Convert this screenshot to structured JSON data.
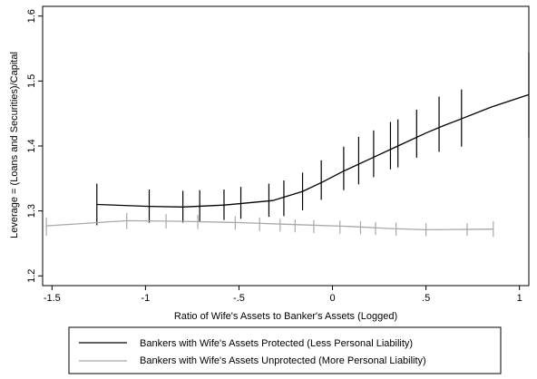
{
  "chart_data": {
    "type": "line",
    "xlabel": "Ratio of Wife's Assets to Banker's Assets (Logged)",
    "ylabel": "Leverage = (Loans and Securities)/Capital",
    "xlim": [
      -1.55,
      1.05
    ],
    "ylim": [
      1.185,
      1.615
    ],
    "x_ticks": [
      -1.5,
      -1,
      -0.5,
      0,
      0.5,
      1
    ],
    "x_tick_labels": [
      "-1.5",
      "-1",
      "-.5",
      "0",
      ".5",
      "1"
    ],
    "y_ticks": [
      1.2,
      1.3,
      1.4,
      1.5,
      1.6
    ],
    "y_tick_labels": [
      "1.2",
      "1.3",
      "1.4",
      "1.5",
      "1.6"
    ],
    "grid": false,
    "legend_position": "bottom",
    "series": [
      {
        "name": "Bankers with Wife's Assets Protected (Less Personal Liability)",
        "color": "#000000",
        "line": [
          {
            "x": -1.26,
            "y": 1.31
          },
          {
            "x": -0.98,
            "y": 1.307
          },
          {
            "x": -0.8,
            "y": 1.306
          },
          {
            "x": -0.58,
            "y": 1.309
          },
          {
            "x": -0.32,
            "y": 1.316
          },
          {
            "x": -0.16,
            "y": 1.33
          },
          {
            "x": -0.05,
            "y": 1.345
          },
          {
            "x": 0.05,
            "y": 1.36
          },
          {
            "x": 0.2,
            "y": 1.38
          },
          {
            "x": 0.35,
            "y": 1.4
          },
          {
            "x": 0.5,
            "y": 1.42
          },
          {
            "x": 0.6,
            "y": 1.432
          },
          {
            "x": 0.7,
            "y": 1.443
          },
          {
            "x": 0.85,
            "y": 1.46
          },
          {
            "x": 1.05,
            "y": 1.479
          }
        ],
        "error_bars": [
          {
            "x": -1.26,
            "lo": 1.278,
            "hi": 1.342
          },
          {
            "x": -0.98,
            "lo": 1.282,
            "hi": 1.333
          },
          {
            "x": -0.8,
            "lo": 1.282,
            "hi": 1.331
          },
          {
            "x": -0.71,
            "lo": 1.283,
            "hi": 1.332
          },
          {
            "x": -0.58,
            "lo": 1.286,
            "hi": 1.333
          },
          {
            "x": -0.49,
            "lo": 1.288,
            "hi": 1.337
          },
          {
            "x": -0.34,
            "lo": 1.291,
            "hi": 1.342
          },
          {
            "x": -0.26,
            "lo": 1.292,
            "hi": 1.347
          },
          {
            "x": -0.16,
            "lo": 1.301,
            "hi": 1.359
          },
          {
            "x": -0.06,
            "lo": 1.317,
            "hi": 1.378
          },
          {
            "x": 0.06,
            "lo": 1.332,
            "hi": 1.399
          },
          {
            "x": 0.14,
            "lo": 1.341,
            "hi": 1.414
          },
          {
            "x": 0.22,
            "lo": 1.352,
            "hi": 1.424
          },
          {
            "x": 0.31,
            "lo": 1.364,
            "hi": 1.437
          },
          {
            "x": 0.35,
            "lo": 1.367,
            "hi": 1.441
          },
          {
            "x": 0.45,
            "lo": 1.382,
            "hi": 1.456
          },
          {
            "x": 0.57,
            "lo": 1.391,
            "hi": 1.476
          },
          {
            "x": 0.69,
            "lo": 1.399,
            "hi": 1.487
          },
          {
            "x": 1.05,
            "lo": 1.413,
            "hi": 1.544
          }
        ]
      },
      {
        "name": "Bankers with Wife's Assets Unprotected (More Personal Liability)",
        "color": "#a8a8a8",
        "line": [
          {
            "x": -1.53,
            "y": 1.277
          },
          {
            "x": -1.1,
            "y": 1.285
          },
          {
            "x": -0.8,
            "y": 1.284
          },
          {
            "x": -0.5,
            "y": 1.282
          },
          {
            "x": -0.2,
            "y": 1.279
          },
          {
            "x": 0.1,
            "y": 1.276
          },
          {
            "x": 0.3,
            "y": 1.273
          },
          {
            "x": 0.5,
            "y": 1.271
          },
          {
            "x": 0.86,
            "y": 1.272
          }
        ],
        "error_bars": [
          {
            "x": -1.53,
            "lo": 1.262,
            "hi": 1.29
          },
          {
            "x": -1.1,
            "lo": 1.272,
            "hi": 1.297
          },
          {
            "x": -0.89,
            "lo": 1.273,
            "hi": 1.295
          },
          {
            "x": -0.72,
            "lo": 1.272,
            "hi": 1.294
          },
          {
            "x": -0.52,
            "lo": 1.271,
            "hi": 1.292
          },
          {
            "x": -0.39,
            "lo": 1.269,
            "hi": 1.29
          },
          {
            "x": -0.28,
            "lo": 1.268,
            "hi": 1.288
          },
          {
            "x": -0.2,
            "lo": 1.267,
            "hi": 1.287
          },
          {
            "x": -0.1,
            "lo": 1.266,
            "hi": 1.286
          },
          {
            "x": 0.04,
            "lo": 1.265,
            "hi": 1.285
          },
          {
            "x": 0.15,
            "lo": 1.264,
            "hi": 1.284
          },
          {
            "x": 0.23,
            "lo": 1.263,
            "hi": 1.283
          },
          {
            "x": 0.34,
            "lo": 1.262,
            "hi": 1.282
          },
          {
            "x": 0.5,
            "lo": 1.261,
            "hi": 1.281
          },
          {
            "x": 0.72,
            "lo": 1.262,
            "hi": 1.281
          },
          {
            "x": 0.86,
            "lo": 1.26,
            "hi": 1.284
          }
        ]
      }
    ]
  }
}
